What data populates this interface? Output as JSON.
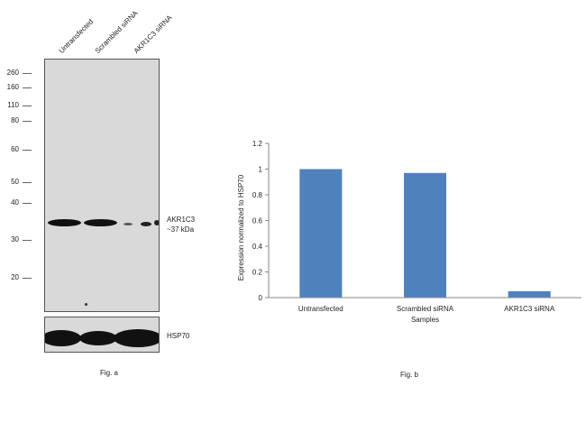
{
  "fig_a": {
    "lanes": [
      "Untransfected",
      "Scrambled siRNA",
      "AKR1C3 siRNA"
    ],
    "markers": [
      "260",
      "160",
      "110",
      "80",
      "60",
      "50",
      "40",
      "30",
      "20"
    ],
    "band_labels": {
      "target_name": "AKR1C3",
      "target_size": "~37 kDa",
      "loading": "HSP70"
    },
    "caption": "Fig. a"
  },
  "fig_b": {
    "caption": "Fig. b"
  },
  "chart_data": {
    "type": "bar",
    "categories": [
      "Untransfected",
      "Scrambled siRNA",
      "AKR1C3 siRNA"
    ],
    "values": [
      1.0,
      0.97,
      0.05
    ],
    "title": "",
    "xlabel": "Samples",
    "ylabel": "Expression normalized to HSP70",
    "ylim": [
      0,
      1.2
    ],
    "yticks": [
      "0",
      "0.2",
      "0.4",
      "0.6",
      "0.8",
      "1",
      "1.2"
    ],
    "bar_color": "#4f81bd"
  }
}
